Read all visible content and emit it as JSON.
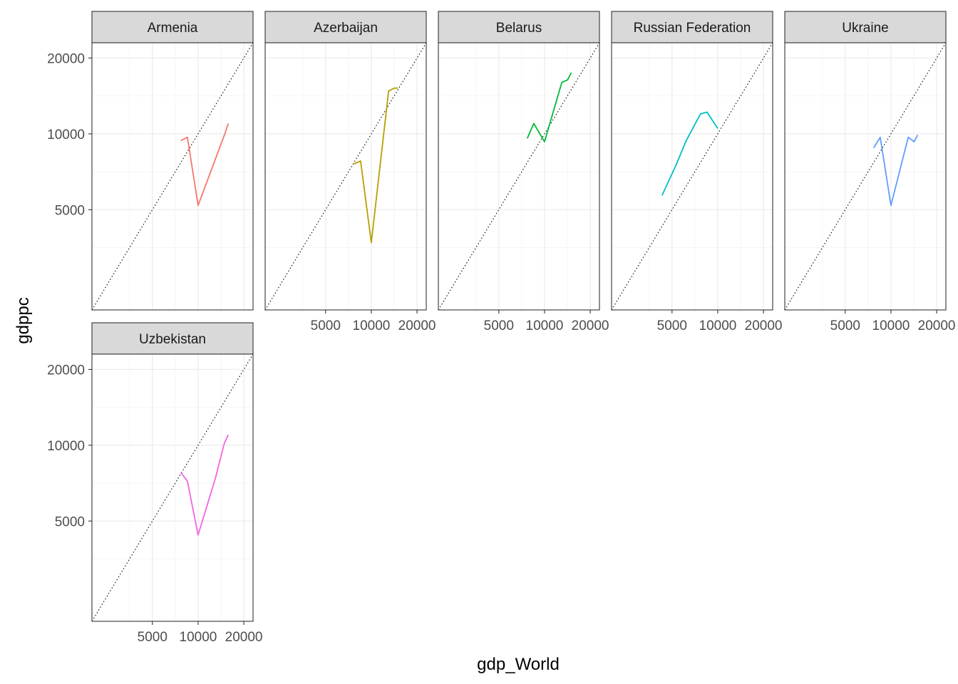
{
  "chart_data": {
    "type": "line",
    "facet_type": "wrap",
    "xlabel": "gdp_World",
    "ylabel": "gdppc",
    "x_scale": "log",
    "y_scale": "log",
    "xlim": [
      2000,
      23000
    ],
    "ylim": [
      2000,
      23000
    ],
    "x_ticks": [
      5000,
      10000,
      20000
    ],
    "x_tick_labels": [
      "5000",
      "10000",
      "20000"
    ],
    "y_ticks": [
      5000,
      10000,
      20000
    ],
    "y_tick_labels": [
      "5000",
      "10000",
      "20000"
    ],
    "reference_line": {
      "kind": "identity",
      "style": "dotted",
      "color": "#000000"
    },
    "grid": true,
    "theme": "bw",
    "legend": "none",
    "panels": [
      {
        "name": "Armenia",
        "color": "#F8766D",
        "x": [
          7700,
          8500,
          10000,
          15000,
          15800
        ],
        "y": [
          9400,
          9700,
          5200,
          10000,
          11000
        ]
      },
      {
        "name": "Azerbaijan",
        "color": "#B79F00",
        "x": [
          7700,
          8500,
          10000,
          13000,
          14200,
          15000
        ],
        "y": [
          7600,
          7800,
          3700,
          14800,
          15200,
          15200
        ]
      },
      {
        "name": "Belarus",
        "color": "#00BA38",
        "x": [
          7700,
          8500,
          10000,
          13000,
          14200,
          15000
        ],
        "y": [
          9600,
          11000,
          9300,
          16000,
          16400,
          17500
        ]
      },
      {
        "name": "Russian Federation",
        "color": "#00BFC4",
        "x": [
          4300,
          5300,
          6200,
          7700,
          8500,
          10000
        ],
        "y": [
          5700,
          7500,
          9400,
          12000,
          12200,
          10500
        ]
      },
      {
        "name": "Ukraine",
        "color": "#619CFF",
        "x": [
          7700,
          8500,
          10000,
          13000,
          14200,
          15000
        ],
        "y": [
          8800,
          9700,
          5200,
          9700,
          9300,
          9900
        ]
      },
      {
        "name": "Uzbekistan",
        "color": "#F564E3",
        "x": [
          7700,
          8500,
          10000,
          13000,
          14900,
          15800
        ],
        "y": [
          7800,
          7200,
          4400,
          7400,
          10200,
          11000
        ]
      }
    ]
  }
}
